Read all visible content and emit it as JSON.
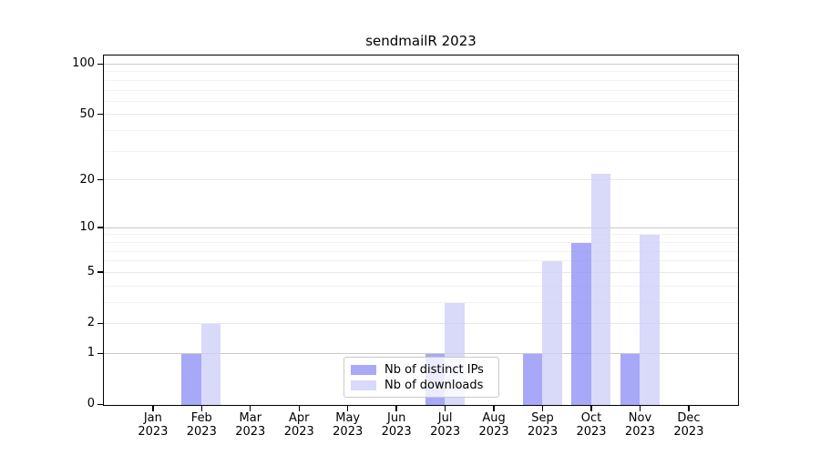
{
  "title": "sendmailR 2023",
  "chart_data": {
    "type": "bar",
    "title": "sendmailR 2023",
    "categories": [
      "Jan",
      "Feb",
      "Mar",
      "Apr",
      "May",
      "Jun",
      "Jul",
      "Aug",
      "Sep",
      "Oct",
      "Nov",
      "Dec"
    ],
    "year": "2023",
    "series": [
      {
        "name": "Nb of distinct IPs",
        "color": "#a9a9f7",
        "bar_color": "rgba(143,143,246,0.78)",
        "values": [
          0,
          1,
          0,
          0,
          0,
          0,
          1,
          0,
          1,
          8,
          1,
          0
        ]
      },
      {
        "name": "Nb of downloads",
        "color": "#d9d9fa",
        "bar_color": "rgba(206,206,249,0.78)",
        "values": [
          0,
          2,
          0,
          0,
          0,
          0,
          3,
          0,
          6,
          22,
          9,
          0
        ]
      }
    ],
    "xlabel": "",
    "ylabel": "",
    "yscale": "log1p",
    "ylim": [
      0,
      100
    ],
    "yticks": [
      0,
      1,
      2,
      5,
      10,
      20,
      50,
      100
    ],
    "yticks_minor": [
      3,
      4,
      6,
      7,
      8,
      9,
      30,
      40,
      60,
      70,
      80,
      90
    ],
    "grid": true,
    "legend_position": "bottom-center"
  }
}
